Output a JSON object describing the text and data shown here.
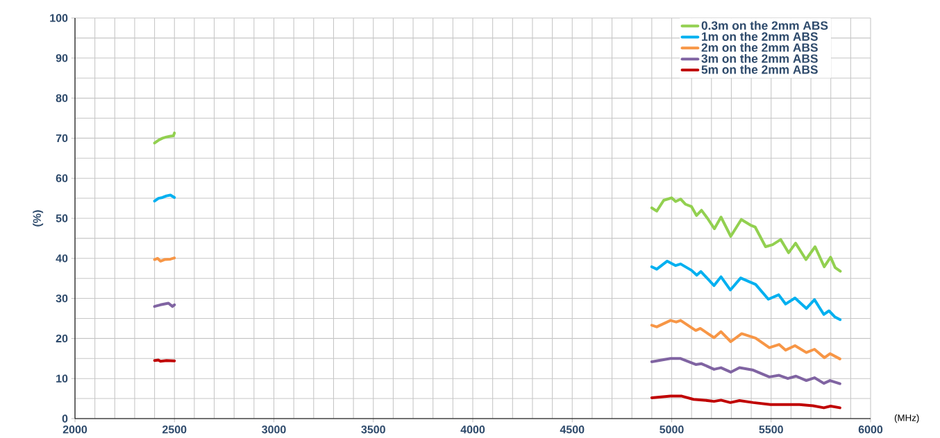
{
  "chart_data": {
    "type": "line",
    "xlabel": "(MHz)",
    "ylabel": "(%)",
    "xlim": [
      2000,
      6000
    ],
    "xticks": [
      2000,
      2500,
      3000,
      3500,
      4000,
      4500,
      5000,
      5500,
      6000
    ],
    "ylim": [
      0,
      100
    ],
    "yticks": [
      0,
      10,
      20,
      30,
      40,
      50,
      60,
      70,
      80,
      90,
      100
    ],
    "grid": true,
    "legend": "top right",
    "marker": "none",
    "line_style": "solid",
    "series": [
      {
        "name": "0.3m on the 2mm ABS",
        "color": "#92d050",
        "x": [
          2400,
          2420,
          2440,
          2460,
          2480,
          2495,
          2500,
          3700,
          4900,
          4925,
          4960,
          5000,
          5020,
          5045,
          5070,
          5100,
          5125,
          5150,
          5180,
          5215,
          5248,
          5297,
          5350,
          5396,
          5420,
          5472,
          5507,
          5548,
          5588,
          5623,
          5675,
          5721,
          5767,
          5799,
          5822,
          5848
        ],
        "values": [
          68.8,
          69.5,
          70,
          70.3,
          70.5,
          70.6,
          71.3,
          null,
          52.6,
          51.8,
          54.5,
          55.1,
          54.2,
          54.8,
          53.5,
          52.9,
          50.7,
          52,
          50,
          47.4,
          50.3,
          45.5,
          49.7,
          48.3,
          47.8,
          42.9,
          43.4,
          44.7,
          41.4,
          43.8,
          39.7,
          42.9,
          37.9,
          40.3,
          37.7,
          36.8
        ]
      },
      {
        "name": "1m on the 2mm ABS",
        "color": "#00b0f0",
        "x": [
          2400,
          2420,
          2440,
          2460,
          2480,
          2500,
          3700,
          4900,
          4925,
          4977,
          5020,
          5045,
          5100,
          5126,
          5147,
          5213,
          5248,
          5295,
          5347,
          5393,
          5422,
          5486,
          5538,
          5573,
          5620,
          5677,
          5718,
          5765,
          5791,
          5820,
          5847
        ],
        "values": [
          54.3,
          55,
          55.2,
          55.6,
          55.8,
          55.2,
          null,
          37.9,
          37.3,
          39.3,
          38.2,
          38.6,
          37,
          35.8,
          36.7,
          33.2,
          35.4,
          32.1,
          35.1,
          34.1,
          33.5,
          29.8,
          30.9,
          28.6,
          30.1,
          27.5,
          29.7,
          26,
          26.9,
          25.4,
          24.7
        ]
      },
      {
        "name": "2m on the 2mm ABS",
        "color": "#f79646",
        "x": [
          2400,
          2415,
          2430,
          2450,
          2480,
          2500,
          3700,
          4900,
          4925,
          4994,
          5023,
          5045,
          5121,
          5144,
          5213,
          5248,
          5297,
          5352,
          5422,
          5491,
          5540,
          5573,
          5620,
          5677,
          5718,
          5768,
          5796,
          5846
        ],
        "values": [
          39.7,
          40,
          39.3,
          39.7,
          39.8,
          40.1,
          null,
          23.3,
          22.9,
          24.5,
          24.1,
          24.5,
          22,
          22.5,
          20.2,
          21.7,
          19.2,
          21.2,
          20.1,
          17.7,
          18.5,
          17.1,
          18.2,
          16.5,
          17.3,
          15.2,
          16.2,
          14.9
        ]
      },
      {
        "name": "3m on the 2mm ABS",
        "color": "#8064a2",
        "x": [
          2400,
          2430,
          2470,
          2490,
          2500,
          3700,
          4900,
          4994,
          5045,
          5121,
          5150,
          5213,
          5248,
          5297,
          5341,
          5410,
          5491,
          5540,
          5584,
          5625,
          5677,
          5718,
          5765,
          5796,
          5846
        ],
        "values": [
          28,
          28.4,
          28.8,
          28,
          28.4,
          null,
          14.2,
          15,
          15,
          13.5,
          13.7,
          12.3,
          12.7,
          11.6,
          12.7,
          12.1,
          10.4,
          10.8,
          10,
          10.6,
          9.5,
          10.2,
          8.8,
          9.5,
          8.7
        ]
      },
      {
        "name": "5m on the 2mm ABS",
        "color": "#c00000",
        "x": [
          2400,
          2420,
          2430,
          2460,
          2500,
          3700,
          4900,
          4994,
          5051,
          5110,
          5163,
          5213,
          5248,
          5295,
          5341,
          5410,
          5497,
          5573,
          5642,
          5711,
          5765,
          5799,
          5846
        ],
        "values": [
          14.5,
          14.6,
          14.3,
          14.5,
          14.4,
          null,
          5.2,
          5.6,
          5.6,
          4.8,
          4.6,
          4.3,
          4.6,
          4,
          4.5,
          4,
          3.5,
          3.5,
          3.5,
          3.2,
          2.7,
          3.1,
          2.7
        ]
      }
    ]
  }
}
